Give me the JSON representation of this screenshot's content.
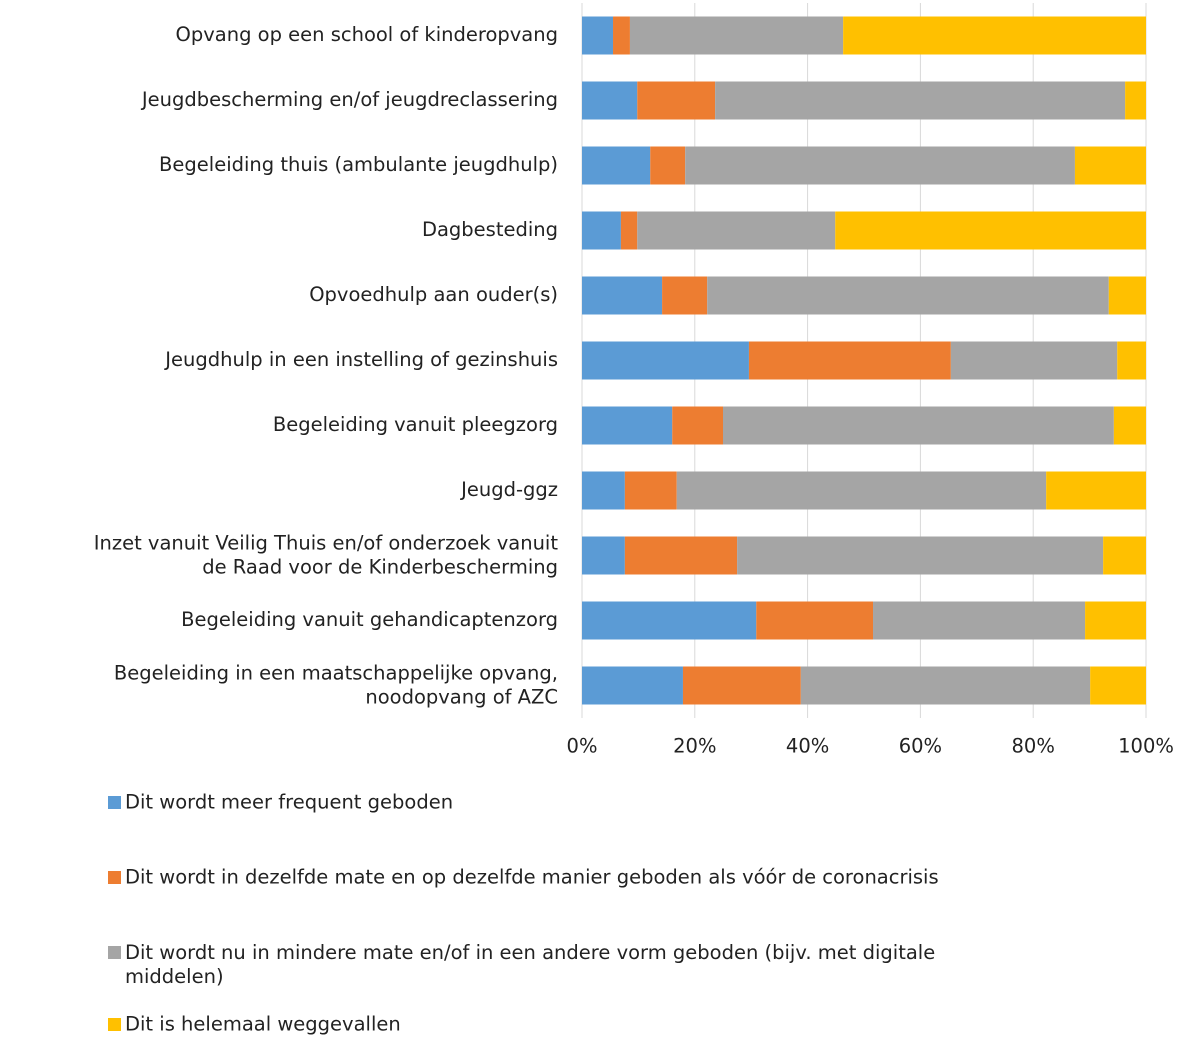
{
  "chart_data": {
    "type": "stacked_barh",
    "categories": [
      "Opvang op een school of kinderopvang",
      "Jeugdbescherming en/of jeugdreclassering",
      "Begeleiding thuis (ambulante jeugdhulp)",
      "Dagbesteding",
      "Opvoedhulp aan ouder(s)",
      "Jeugdhulp in een instelling of gezinshuis",
      "Begeleiding vanuit pleegzorg",
      "Jeugd-ggz",
      "Inzet vanuit Veilig Thuis en/of onderzoek vanuit\nde Raad voor de Kinderbescherming",
      "Begeleiding vanuit gehandicaptenzorg",
      "Begeleiding in een maatschappelijke opvang,\nnoodopvang of AZC"
    ],
    "series": [
      {
        "name": "Dit wordt meer frequent geboden",
        "color": "#5b9bd5",
        "values": [
          5.5,
          9.8,
          12.1,
          6.9,
          14.2,
          29.6,
          16.0,
          7.6,
          7.6,
          30.9,
          17.9
        ]
      },
      {
        "name": "Dit wordt in dezelfde mate en op dezelfde manier geboden als vóór de coronacrisis",
        "color": "#ed7d31",
        "values": [
          3.0,
          13.8,
          6.2,
          2.9,
          8.0,
          35.8,
          9.0,
          9.2,
          19.9,
          20.7,
          20.9
        ]
      },
      {
        "name": "Dit wordt nu in mindere mate en/of in een andere vorm geboden (bijv. met digitale\nmiddelen)",
        "color": "#a5a5a5",
        "values": [
          37.8,
          72.7,
          69.1,
          35.1,
          71.2,
          29.5,
          69.3,
          65.5,
          64.9,
          37.6,
          51.3
        ]
      },
      {
        "name": "Dit is helemaal weggevallen",
        "color": "#ffc000",
        "values": [
          53.7,
          3.7,
          12.6,
          55.1,
          6.6,
          5.1,
          5.7,
          17.7,
          7.6,
          10.8,
          9.9
        ]
      }
    ],
    "xlim": [
      0,
      100
    ],
    "xticks": [
      {
        "value": 0,
        "label": "0%"
      },
      {
        "value": 20,
        "label": "20%"
      },
      {
        "value": 40,
        "label": "40%"
      },
      {
        "value": 60,
        "label": "60%"
      },
      {
        "value": 80,
        "label": "80%"
      },
      {
        "value": 100,
        "label": "100%"
      }
    ],
    "grid": true,
    "legend": "bottom"
  }
}
